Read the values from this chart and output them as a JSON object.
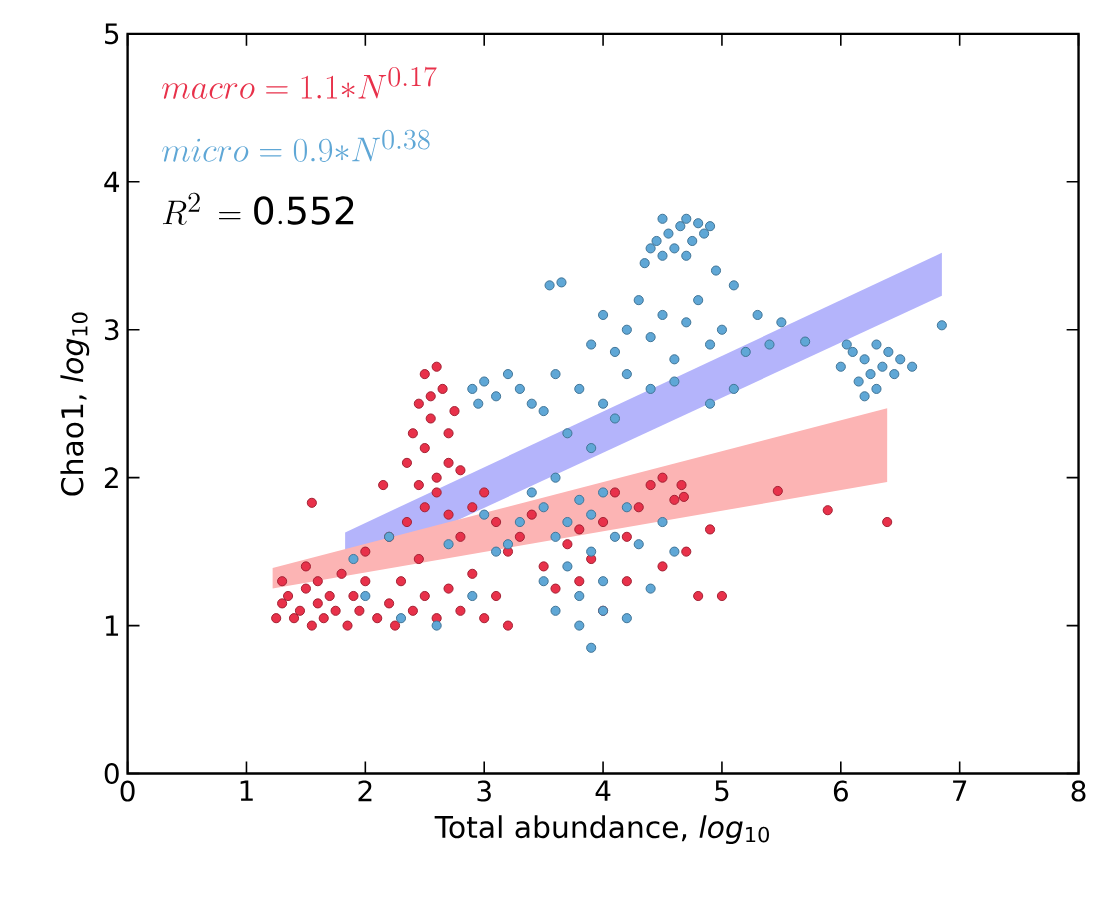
{
  "chart_data": {
    "type": "scatter",
    "xlabel": "Total abundance, *log*$_{10}$",
    "ylabel": "Chao1, *log*$_{10}$",
    "xlim": [
      0,
      8
    ],
    "ylim": [
      0,
      5
    ],
    "xticks": [
      0,
      1,
      2,
      3,
      4,
      5,
      6,
      7,
      8
    ],
    "yticks": [
      0,
      1,
      2,
      3,
      4,
      5
    ],
    "marker": "circle",
    "grid": false,
    "annotations": [
      "macro = 1.1{*}N^{0.17}",
      "micro = 0.9{*}N^{0.38}",
      "R^{2}\\,=\\mathrm{0.552}"
    ],
    "series": [
      {
        "type": "line",
        "color": "#b4b4fb",
        "x": [
          1.83,
          6.85
        ],
        "values": [
          null,
          null
        ],
        "lower": [
          1.36,
          3.23
        ],
        "upper": [
          1.63,
          3.52
        ]
      },
      {
        "type": "line",
        "color": "#fcb4b4",
        "x": [
          1.22,
          6.39
        ],
        "values": [
          null,
          null
        ],
        "lower": [
          1.25,
          1.97
        ],
        "upper": [
          1.39,
          2.47
        ]
      },
      {
        "color": "#e8314a",
        "x": [
          1.25,
          1.3,
          1.35,
          1.3,
          1.4,
          1.45,
          1.5,
          1.5,
          1.55,
          1.6,
          1.6,
          1.65,
          1.7,
          1.75,
          1.8,
          1.85,
          1.9,
          1.95,
          2.0,
          1.55,
          2.1,
          2.2,
          2.25,
          2.3,
          2.4,
          2.5,
          2.45,
          2.6,
          2.7,
          2.8,
          2.9,
          3.0,
          3.1,
          3.2,
          2.15,
          2.0,
          2.2,
          2.35,
          2.5,
          2.6,
          2.7,
          2.8,
          2.9,
          3.0,
          3.1,
          3.2,
          3.3,
          3.4,
          3.5,
          3.6,
          3.7,
          3.8,
          3.9,
          4.0,
          4.1,
          4.2,
          4.3,
          4.4,
          4.5,
          4.6,
          4.0,
          3.8,
          4.2,
          4.5,
          4.7,
          4.8,
          5.0,
          4.9,
          2.35,
          2.4,
          2.45,
          2.5,
          2.55,
          2.6,
          2.65,
          2.7,
          2.5,
          2.6,
          2.7,
          2.45,
          2.55,
          2.75,
          2.8,
          5.47,
          5.89,
          6.39,
          4.66,
          4.68
        ],
        "values": [
          1.05,
          1.15,
          1.2,
          1.3,
          1.05,
          1.1,
          1.25,
          1.4,
          1.0,
          1.15,
          1.3,
          1.05,
          1.2,
          1.1,
          1.35,
          1.0,
          1.2,
          1.1,
          1.3,
          1.83,
          1.05,
          1.15,
          1.0,
          1.3,
          1.1,
          1.2,
          1.45,
          1.05,
          1.25,
          1.1,
          1.35,
          1.05,
          1.2,
          1.0,
          1.95,
          1.5,
          1.6,
          1.7,
          1.8,
          1.9,
          1.75,
          1.6,
          1.8,
          1.9,
          1.7,
          1.5,
          1.6,
          1.75,
          1.4,
          1.25,
          1.55,
          1.65,
          1.45,
          1.7,
          1.9,
          1.6,
          1.8,
          1.95,
          2.0,
          1.85,
          1.1,
          1.3,
          1.3,
          1.4,
          1.5,
          1.2,
          1.2,
          1.65,
          2.1,
          2.3,
          2.5,
          2.2,
          2.4,
          2.75,
          2.6,
          2.3,
          2.7,
          2.0,
          2.1,
          1.95,
          2.55,
          2.45,
          2.05,
          1.91,
          1.78,
          1.7,
          1.95,
          1.87
        ]
      },
      {
        "color": "#5fa7d6",
        "x": [
          4.4,
          4.45,
          4.5,
          4.55,
          4.6,
          4.65,
          4.7,
          4.75,
          4.8,
          4.85,
          4.9,
          4.7,
          4.35,
          4.5,
          4.95,
          3.9,
          4.0,
          4.1,
          4.2,
          4.3,
          4.4,
          4.5,
          4.6,
          4.7,
          4.8,
          4.9,
          5.0,
          5.1,
          5.2,
          5.3,
          5.4,
          5.5,
          4.2,
          4.4,
          4.6,
          4.0,
          3.8,
          3.6,
          3.5,
          3.7,
          3.9,
          4.1,
          3.55,
          3.65,
          5.7,
          4.9,
          5.1,
          2.9,
          3.0,
          3.1,
          3.2,
          3.3,
          2.95,
          3.4,
          3.5,
          3.6,
          3.7,
          3.8,
          3.9,
          4.0,
          3.6,
          3.7,
          3.8,
          3.9,
          4.0,
          4.1,
          4.2,
          4.3,
          3.4,
          3.3,
          3.2,
          3.5,
          3.6,
          3.8,
          3.9,
          4.0,
          4.2,
          4.4,
          4.5,
          4.6,
          3.1,
          2.0,
          2.3,
          2.6,
          2.9,
          2.2,
          1.9,
          2.7,
          3.0,
          6.0,
          6.1,
          6.15,
          6.2,
          6.25,
          6.3,
          6.3,
          6.35,
          6.4,
          6.45,
          6.5,
          6.2,
          6.6,
          6.05,
          6.85
        ],
        "values": [
          3.55,
          3.6,
          3.5,
          3.65,
          3.55,
          3.7,
          3.75,
          3.6,
          3.72,
          3.65,
          3.7,
          3.5,
          3.45,
          3.75,
          3.4,
          2.9,
          3.1,
          2.85,
          3.0,
          3.2,
          2.95,
          3.1,
          2.8,
          3.05,
          3.2,
          2.9,
          3.0,
          3.3,
          2.85,
          3.1,
          2.9,
          3.05,
          2.7,
          2.6,
          2.65,
          2.5,
          2.6,
          2.7,
          2.45,
          2.3,
          2.2,
          2.4,
          3.3,
          3.32,
          2.92,
          2.5,
          2.6,
          2.6,
          2.65,
          2.55,
          2.7,
          2.6,
          2.5,
          2.5,
          1.8,
          1.6,
          1.7,
          1.85,
          1.75,
          1.9,
          2.0,
          1.4,
          1.2,
          1.5,
          1.3,
          1.6,
          1.8,
          1.55,
          1.9,
          1.7,
          1.55,
          1.3,
          1.1,
          1.0,
          0.85,
          1.1,
          1.05,
          1.25,
          1.7,
          1.5,
          1.5,
          1.2,
          1.05,
          1.0,
          1.2,
          1.6,
          1.45,
          1.55,
          1.75,
          2.75,
          2.85,
          2.65,
          2.8,
          2.7,
          2.9,
          2.6,
          2.75,
          2.85,
          2.7,
          2.8,
          2.55,
          2.75,
          2.9,
          3.03
        ]
      }
    ]
  }
}
